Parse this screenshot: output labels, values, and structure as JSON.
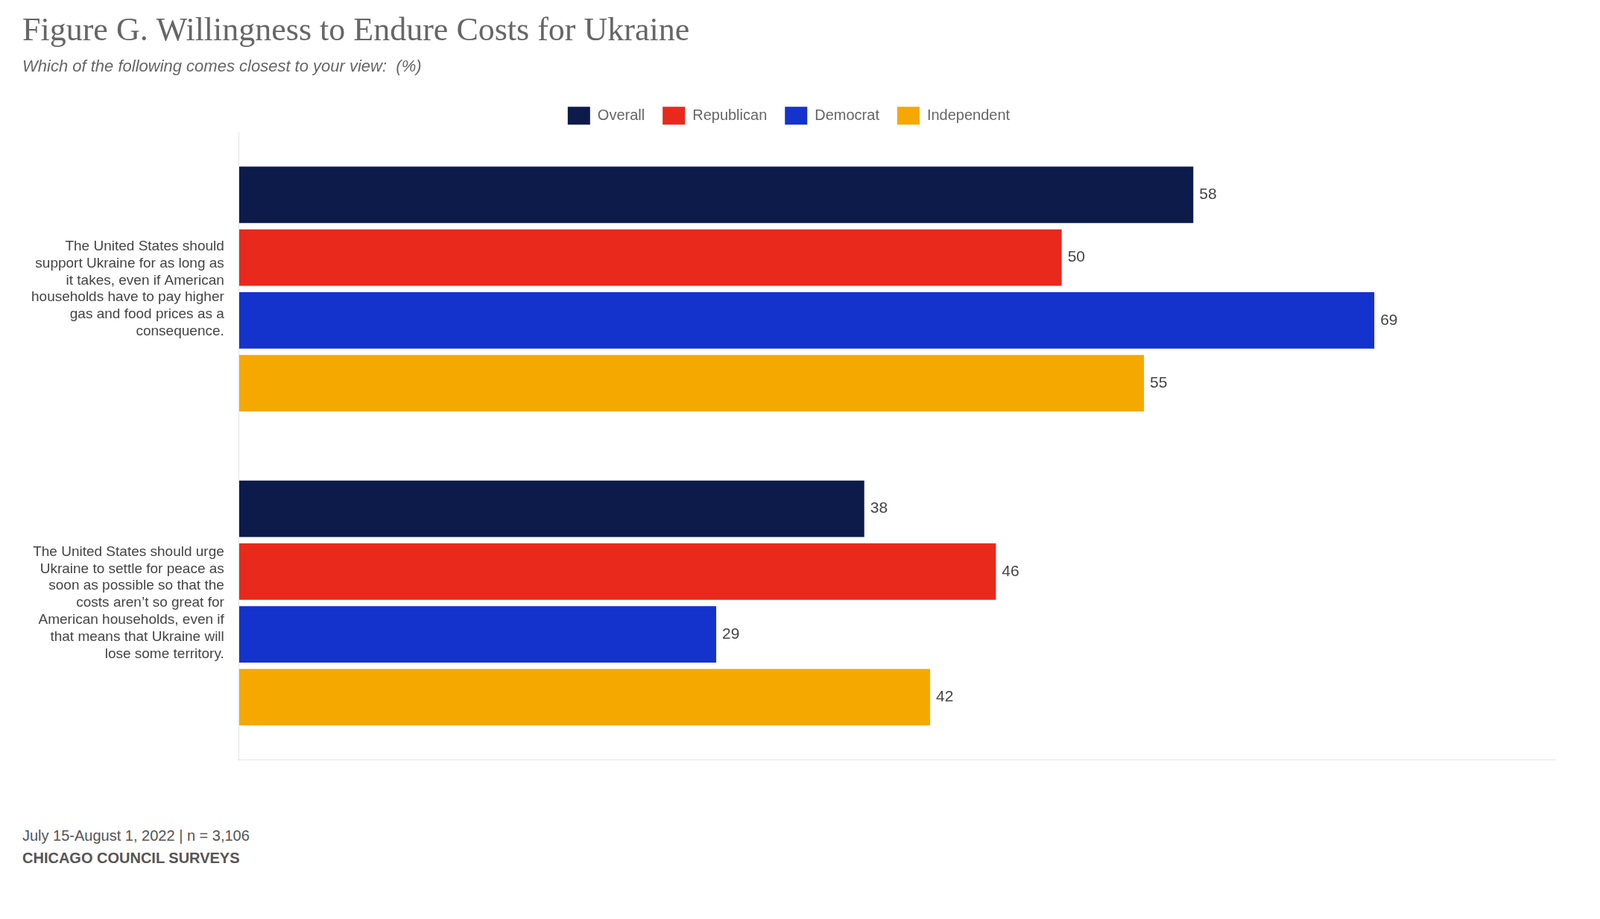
{
  "chart_data": {
    "type": "bar",
    "orientation": "horizontal",
    "title": "Figure G. Willingness to Endure Costs for Ukraine",
    "subtitle": "Which of the following comes closest to your view:  (%)",
    "annotations": [
      "July 15-August 1, 2022 | n = 3,106",
      "CHICAGO COUNCIL SURVEYS"
    ],
    "categories": [
      "The United States should\nsupport Ukraine for as long as\nit takes, even if American\nhouseholds have to pay higher\ngas and food prices as a\nconsequence.",
      "The United States should urge\nUkraine to settle for peace as\nsoon as possible so that the\ncosts aren’t so great for\nAmerican households, even if\nthat means that Ukraine will\nlose some territory."
    ],
    "series": [
      {
        "name": "Overall",
        "color": "#0d1b4b",
        "values": [
          58,
          38
        ]
      },
      {
        "name": "Republican",
        "color": "#e8291c",
        "values": [
          50,
          46
        ]
      },
      {
        "name": "Democrat",
        "color": "#1433cc",
        "values": [
          69,
          29
        ]
      },
      {
        "name": "Independent",
        "color": "#f5a800",
        "values": [
          55,
          42
        ]
      }
    ],
    "xlim": [
      0,
      80
    ],
    "tick_labels": "y",
    "grid": false,
    "legend": "top",
    "data_labels": true
  }
}
